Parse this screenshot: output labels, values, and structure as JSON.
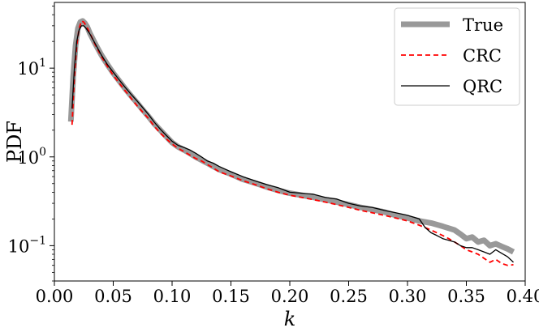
{
  "chart_data": {
    "type": "line",
    "title": "",
    "xlabel": "k",
    "ylabel": "PDF",
    "xlim": [
      0.0,
      0.4
    ],
    "ylim": [
      0.04,
      55
    ],
    "yscale": "log",
    "grid": false,
    "legend_position": "top-right",
    "x_ticks": [
      {
        "value": 0.0,
        "label": "0.00"
      },
      {
        "value": 0.05,
        "label": "0.05"
      },
      {
        "value": 0.1,
        "label": "0.10"
      },
      {
        "value": 0.15,
        "label": "0.15"
      },
      {
        "value": 0.2,
        "label": "0.20"
      },
      {
        "value": 0.25,
        "label": "0.25"
      },
      {
        "value": 0.3,
        "label": "0.30"
      },
      {
        "value": 0.35,
        "label": "0.35"
      },
      {
        "value": 0.4,
        "label": "0.40"
      }
    ],
    "y_ticks": [
      {
        "value": 0.1,
        "base": "10",
        "exp": "−1"
      },
      {
        "value": 1,
        "base": "10",
        "exp": "0"
      },
      {
        "value": 10,
        "base": "10",
        "exp": "1"
      }
    ],
    "series": [
      {
        "name": "True",
        "color": "#999999",
        "style": "solid-thick",
        "points": [
          [
            0.014,
            2.5
          ],
          [
            0.016,
            8
          ],
          [
            0.018,
            18
          ],
          [
            0.02,
            28
          ],
          [
            0.022,
            33
          ],
          [
            0.024,
            34
          ],
          [
            0.026,
            32
          ],
          [
            0.028,
            29
          ],
          [
            0.03,
            25
          ],
          [
            0.035,
            18.5
          ],
          [
            0.04,
            14
          ],
          [
            0.045,
            11
          ],
          [
            0.05,
            8.8
          ],
          [
            0.055,
            7.2
          ],
          [
            0.06,
            5.9
          ],
          [
            0.065,
            4.9
          ],
          [
            0.07,
            4.1
          ],
          [
            0.075,
            3.4
          ],
          [
            0.08,
            2.85
          ],
          [
            0.085,
            2.35
          ],
          [
            0.09,
            2.0
          ],
          [
            0.095,
            1.7
          ],
          [
            0.1,
            1.45
          ],
          [
            0.105,
            1.3
          ],
          [
            0.11,
            1.2
          ],
          [
            0.115,
            1.1
          ],
          [
            0.12,
            1.0
          ],
          [
            0.125,
            0.92
          ],
          [
            0.13,
            0.85
          ],
          [
            0.135,
            0.78
          ],
          [
            0.14,
            0.72
          ],
          [
            0.15,
            0.64
          ],
          [
            0.16,
            0.56
          ],
          [
            0.17,
            0.51
          ],
          [
            0.18,
            0.46
          ],
          [
            0.19,
            0.42
          ],
          [
            0.2,
            0.39
          ],
          [
            0.21,
            0.37
          ],
          [
            0.22,
            0.35
          ],
          [
            0.23,
            0.33
          ],
          [
            0.24,
            0.31
          ],
          [
            0.25,
            0.29
          ],
          [
            0.26,
            0.27
          ],
          [
            0.27,
            0.255
          ],
          [
            0.28,
            0.24
          ],
          [
            0.29,
            0.22
          ],
          [
            0.3,
            0.205
          ],
          [
            0.31,
            0.19
          ],
          [
            0.32,
            0.18
          ],
          [
            0.33,
            0.165
          ],
          [
            0.34,
            0.15
          ],
          [
            0.345,
            0.135
          ],
          [
            0.35,
            0.12
          ],
          [
            0.355,
            0.125
          ],
          [
            0.36,
            0.11
          ],
          [
            0.365,
            0.115
          ],
          [
            0.37,
            0.1
          ],
          [
            0.375,
            0.105
          ],
          [
            0.38,
            0.098
          ],
          [
            0.385,
            0.092
          ],
          [
            0.39,
            0.085
          ]
        ]
      },
      {
        "name": "CRC",
        "color": "#ff0000",
        "style": "dashed",
        "points": [
          [
            0.015,
            2.3
          ],
          [
            0.017,
            8
          ],
          [
            0.019,
            18
          ],
          [
            0.021,
            28
          ],
          [
            0.023,
            34
          ],
          [
            0.025,
            33
          ],
          [
            0.027,
            30
          ],
          [
            0.03,
            25
          ],
          [
            0.035,
            18
          ],
          [
            0.04,
            13.5
          ],
          [
            0.045,
            10.5
          ],
          [
            0.05,
            8.3
          ],
          [
            0.055,
            6.8
          ],
          [
            0.06,
            5.6
          ],
          [
            0.065,
            4.6
          ],
          [
            0.07,
            3.8
          ],
          [
            0.075,
            3.2
          ],
          [
            0.08,
            2.7
          ],
          [
            0.085,
            2.2
          ],
          [
            0.09,
            1.85
          ],
          [
            0.095,
            1.6
          ],
          [
            0.1,
            1.4
          ],
          [
            0.105,
            1.25
          ],
          [
            0.11,
            1.15
          ],
          [
            0.115,
            1.05
          ],
          [
            0.12,
            0.96
          ],
          [
            0.125,
            0.9
          ],
          [
            0.13,
            0.82
          ],
          [
            0.135,
            0.75
          ],
          [
            0.14,
            0.68
          ],
          [
            0.15,
            0.61
          ],
          [
            0.16,
            0.54
          ],
          [
            0.17,
            0.49
          ],
          [
            0.18,
            0.44
          ],
          [
            0.19,
            0.4
          ],
          [
            0.2,
            0.37
          ],
          [
            0.21,
            0.35
          ],
          [
            0.22,
            0.33
          ],
          [
            0.23,
            0.31
          ],
          [
            0.24,
            0.29
          ],
          [
            0.25,
            0.27
          ],
          [
            0.26,
            0.25
          ],
          [
            0.27,
            0.235
          ],
          [
            0.28,
            0.22
          ],
          [
            0.29,
            0.205
          ],
          [
            0.3,
            0.19
          ],
          [
            0.31,
            0.17
          ],
          [
            0.32,
            0.15
          ],
          [
            0.33,
            0.13
          ],
          [
            0.335,
            0.12
          ],
          [
            0.34,
            0.11
          ],
          [
            0.345,
            0.1
          ],
          [
            0.35,
            0.09
          ],
          [
            0.355,
            0.085
          ],
          [
            0.36,
            0.08
          ],
          [
            0.365,
            0.072
          ],
          [
            0.37,
            0.065
          ],
          [
            0.375,
            0.07
          ],
          [
            0.38,
            0.063
          ],
          [
            0.385,
            0.06
          ],
          [
            0.39,
            0.061
          ]
        ]
      },
      {
        "name": "QRC",
        "color": "#000000",
        "style": "solid",
        "points": [
          [
            0.015,
            3.5
          ],
          [
            0.017,
            10
          ],
          [
            0.019,
            20
          ],
          [
            0.021,
            27
          ],
          [
            0.023,
            30
          ],
          [
            0.025,
            30
          ],
          [
            0.027,
            28
          ],
          [
            0.03,
            24.5
          ],
          [
            0.035,
            18.5
          ],
          [
            0.04,
            14
          ],
          [
            0.045,
            11
          ],
          [
            0.05,
            9
          ],
          [
            0.055,
            7.4
          ],
          [
            0.06,
            6.1
          ],
          [
            0.065,
            5.1
          ],
          [
            0.07,
            4.3
          ],
          [
            0.075,
            3.6
          ],
          [
            0.08,
            3.0
          ],
          [
            0.085,
            2.45
          ],
          [
            0.09,
            2.05
          ],
          [
            0.095,
            1.75
          ],
          [
            0.1,
            1.5
          ],
          [
            0.105,
            1.35
          ],
          [
            0.11,
            1.28
          ],
          [
            0.115,
            1.2
          ],
          [
            0.12,
            1.1
          ],
          [
            0.125,
            1.0
          ],
          [
            0.13,
            0.9
          ],
          [
            0.135,
            0.85
          ],
          [
            0.14,
            0.78
          ],
          [
            0.15,
            0.68
          ],
          [
            0.16,
            0.6
          ],
          [
            0.17,
            0.54
          ],
          [
            0.18,
            0.49
          ],
          [
            0.19,
            0.45
          ],
          [
            0.2,
            0.4
          ],
          [
            0.21,
            0.39
          ],
          [
            0.22,
            0.38
          ],
          [
            0.23,
            0.35
          ],
          [
            0.24,
            0.335
          ],
          [
            0.25,
            0.3
          ],
          [
            0.26,
            0.28
          ],
          [
            0.27,
            0.27
          ],
          [
            0.28,
            0.25
          ],
          [
            0.29,
            0.235
          ],
          [
            0.3,
            0.22
          ],
          [
            0.31,
            0.2
          ],
          [
            0.315,
            0.16
          ],
          [
            0.32,
            0.14
          ],
          [
            0.325,
            0.13
          ],
          [
            0.33,
            0.12
          ],
          [
            0.335,
            0.115
          ],
          [
            0.34,
            0.11
          ],
          [
            0.345,
            0.1
          ],
          [
            0.35,
            0.095
          ],
          [
            0.355,
            0.095
          ],
          [
            0.36,
            0.09
          ],
          [
            0.365,
            0.085
          ],
          [
            0.37,
            0.08
          ],
          [
            0.375,
            0.09
          ],
          [
            0.38,
            0.082
          ],
          [
            0.385,
            0.075
          ],
          [
            0.39,
            0.065
          ]
        ]
      }
    ]
  }
}
